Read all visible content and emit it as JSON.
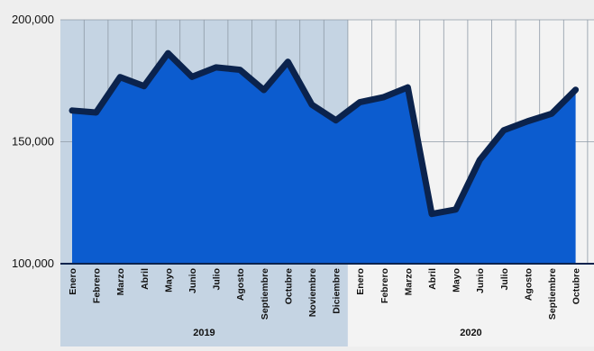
{
  "chart_data": {
    "type": "area",
    "title": "",
    "xlabel": "",
    "ylabel": "",
    "ylim": [
      100000,
      200000
    ],
    "yticks": [
      100000,
      150000,
      200000
    ],
    "ytick_labels": [
      "100,000",
      "150,000",
      "200,000"
    ],
    "grid": true,
    "periods": [
      {
        "label": "2019",
        "color": "#c5d4e3",
        "months": [
          "Enero",
          "Febrero",
          "Marzo",
          "Abril",
          "Mayo",
          "Junio",
          "Julio",
          "Agosto",
          "Septiembre",
          "Octubre",
          "Noviembre",
          "Diciembre"
        ]
      },
      {
        "label": "2020",
        "color": "#f3f3f3",
        "months": [
          "Enero",
          "Febrero",
          "Marzo",
          "Abril",
          "Mayo",
          "Junio",
          "Julio",
          "Agosto",
          "Septiembre",
          "Octubre"
        ]
      }
    ],
    "series": [
      {
        "values": [
          162800,
          162000,
          176500,
          172800,
          186300,
          176600,
          180500,
          179500,
          171200,
          182800,
          165200,
          158800,
          166200,
          168300,
          172300,
          120400,
          122200,
          142500,
          154700,
          158400,
          161500,
          171300
        ],
        "fill": "#0c5ccf",
        "line": "#0b234d"
      }
    ]
  }
}
